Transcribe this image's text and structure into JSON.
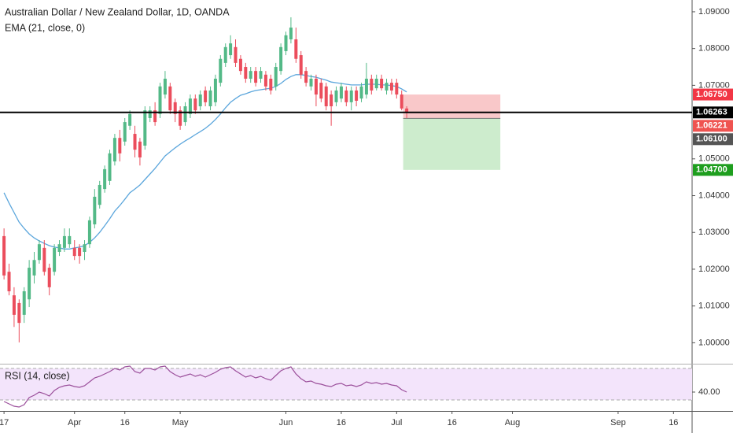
{
  "chart_data": [
    {
      "type": "candlestick",
      "title": "Australian Dollar / New Zealand Dollar, 1D, OANDA",
      "xlim": [
        -0.8,
        136.7
      ],
      "ylim": [
        0.9943,
        1.0932
      ],
      "yticks": [
        {
          "value": 1.09,
          "label": "1.09000"
        },
        {
          "value": 1.08,
          "label": "1.08000"
        },
        {
          "value": 1.07,
          "label": "1.07000"
        },
        {
          "value": 1.05,
          "label": "1.05000"
        },
        {
          "value": 1.04,
          "label": "1.04000"
        },
        {
          "value": 1.03,
          "label": "1.03000"
        },
        {
          "value": 1.02,
          "label": "1.02000"
        },
        {
          "value": 1.01,
          "label": "1.01000"
        },
        {
          "value": 1.0,
          "label": "1.00000"
        }
      ],
      "color_up": "#53b987",
      "color_down": "#eb4d5c",
      "open": [
        1.029,
        1.0193,
        1.0129,
        1.0108,
        1.0076,
        1.0118,
        1.0183,
        1.0225,
        1.0258,
        1.0204,
        1.0193,
        1.0247,
        1.0258,
        1.0268,
        1.0258,
        1.0258,
        1.0247,
        1.0268,
        1.0322,
        1.0375,
        1.0418,
        1.044,
        1.0493,
        1.0557,
        1.0547,
        1.059,
        1.0568,
        1.0547,
        1.0536,
        1.0611,
        1.0632,
        1.0622,
        1.0675,
        1.0697,
        1.0654,
        1.0632,
        1.06,
        1.0622,
        1.0664,
        1.0643,
        1.0686,
        1.0643,
        1.0654,
        1.0707,
        1.0761,
        1.0782,
        1.0804,
        1.0772,
        1.075,
        1.0718,
        1.0739,
        1.0718,
        1.0729,
        1.0718,
        1.0697,
        1.0739,
        1.0793,
        1.0825,
        1.0825,
        1.0782,
        1.0739,
        1.0697,
        1.0718,
        1.0707,
        1.0697,
        1.0675,
        1.0654,
        1.0664,
        1.0686,
        1.0654,
        1.0686,
        1.0664,
        1.0675,
        1.0718,
        1.0692,
        1.0718,
        1.0686,
        1.0707,
        1.0707,
        1.0675,
        1.0637
      ],
      "high": [
        1.0311,
        1.0215,
        1.0151,
        1.0118,
        1.0151,
        1.0225,
        1.0247,
        1.0279,
        1.0279,
        1.0215,
        1.0268,
        1.0279,
        1.0311,
        1.0311,
        1.0279,
        1.0268,
        1.0279,
        1.0343,
        1.0418,
        1.044,
        1.0482,
        1.0525,
        1.0568,
        1.0579,
        1.0611,
        1.0632,
        1.059,
        1.0557,
        1.0643,
        1.0643,
        1.0654,
        1.0707,
        1.0739,
        1.0707,
        1.0664,
        1.0643,
        1.0654,
        1.0675,
        1.0675,
        1.0686,
        1.0697,
        1.0697,
        1.0729,
        1.0782,
        1.0814,
        1.0836,
        1.0825,
        1.0782,
        1.0761,
        1.075,
        1.075,
        1.075,
        1.0739,
        1.0729,
        1.0761,
        1.0814,
        1.0846,
        1.0885,
        1.0857,
        1.0793,
        1.075,
        1.0729,
        1.0729,
        1.0718,
        1.0707,
        1.0686,
        1.0697,
        1.0707,
        1.0697,
        1.0697,
        1.0697,
        1.0707,
        1.0761,
        1.0729,
        1.0729,
        1.0729,
        1.0718,
        1.0718,
        1.0718,
        1.0686,
        1.0643
      ],
      "low": [
        1.0172,
        1.0129,
        1.0043,
        1.0001,
        1.0054,
        1.0097,
        1.0161,
        1.0215,
        1.0183,
        1.0129,
        1.0183,
        1.0236,
        1.0247,
        1.0258,
        1.0225,
        1.0215,
        1.0225,
        1.0258,
        1.0311,
        1.0365,
        1.0408,
        1.0429,
        1.0482,
        1.0493,
        1.0536,
        1.0579,
        1.0504,
        1.0482,
        1.0525,
        1.06,
        1.059,
        1.0611,
        1.0664,
        1.0622,
        1.06,
        1.0579,
        1.059,
        1.0611,
        1.0622,
        1.0632,
        1.0643,
        1.0632,
        1.0643,
        1.0697,
        1.075,
        1.0772,
        1.075,
        1.0729,
        1.0707,
        1.0707,
        1.0697,
        1.0707,
        1.0686,
        1.0675,
        1.0686,
        1.0729,
        1.0782,
        1.0814,
        1.0761,
        1.0718,
        1.0697,
        1.0686,
        1.0643,
        1.0654,
        1.0632,
        1.059,
        1.0643,
        1.0654,
        1.0643,
        1.0632,
        1.0643,
        1.0654,
        1.0664,
        1.0675,
        1.0686,
        1.0686,
        1.0675,
        1.0675,
        1.0664,
        1.0632,
        1.0611
      ],
      "close": [
        1.0183,
        1.014,
        1.0076,
        1.0054,
        1.014,
        1.0204,
        1.0225,
        1.0268,
        1.0193,
        1.0151,
        1.0258,
        1.0268,
        1.029,
        1.029,
        1.0236,
        1.0236,
        1.0268,
        1.0333,
        1.0397,
        1.0429,
        1.0472,
        1.0515,
        1.0557,
        1.0515,
        1.06,
        1.0622,
        1.0525,
        1.0504,
        1.0632,
        1.0632,
        1.06,
        1.0697,
        1.0718,
        1.0632,
        1.0622,
        1.059,
        1.0643,
        1.0664,
        1.0632,
        1.0675,
        1.0654,
        1.0686,
        1.0718,
        1.0772,
        1.0804,
        1.0814,
        1.0761,
        1.0739,
        1.0718,
        1.0739,
        1.0707,
        1.0739,
        1.0697,
        1.0686,
        1.075,
        1.0804,
        1.0836,
        1.0857,
        1.0772,
        1.0729,
        1.0707,
        1.0718,
        1.0675,
        1.0664,
        1.0643,
        1.0643,
        1.0686,
        1.0697,
        1.0654,
        1.0686,
        1.0658,
        1.0697,
        1.0718,
        1.0686,
        1.0718,
        1.0692,
        1.0707,
        1.0686,
        1.0675,
        1.0637,
        1.0626
      ],
      "series": [
        {
          "name": "EMA (21, close, 0)",
          "color": "#5ba6dc",
          "values": [
            1.0408,
            1.038,
            1.0354,
            1.0328,
            1.0311,
            1.0296,
            1.0285,
            1.0277,
            1.027,
            1.0264,
            1.026,
            1.0258,
            1.0255,
            1.0255,
            1.0258,
            1.026,
            1.0264,
            1.0273,
            1.0285,
            1.03,
            1.0318,
            1.0337,
            1.0358,
            1.0373,
            1.039,
            1.0408,
            1.0418,
            1.0429,
            1.0444,
            1.0459,
            1.0474,
            1.0491,
            1.0508,
            1.0519,
            1.053,
            1.054,
            1.0549,
            1.0557,
            1.0566,
            1.0574,
            1.0583,
            1.0594,
            1.0607,
            1.0622,
            1.0639,
            1.0654,
            1.0664,
            1.0673,
            1.0677,
            1.0682,
            1.0686,
            1.0688,
            1.069,
            1.0692,
            1.0697,
            1.0705,
            1.0716,
            1.0724,
            1.0729,
            1.0729,
            1.0727,
            1.0724,
            1.0722,
            1.0718,
            1.0714,
            1.0709,
            1.0707,
            1.0705,
            1.0703,
            1.0701,
            1.0701,
            1.0701,
            1.0703,
            1.0703,
            1.0703,
            1.0701,
            1.0701,
            1.0699,
            1.0697,
            1.069,
            1.0682
          ]
        }
      ],
      "price_labels": [
        {
          "value": 1.0675,
          "label": "1.06750",
          "color": "#f23645"
        },
        {
          "value": 1.06263,
          "label": "1.06263",
          "color": "#000000",
          "line": true
        },
        {
          "value": 1.06221,
          "label": "1.06221",
          "color": "#ef5350"
        },
        {
          "value": 1.061,
          "label": "1.06100",
          "color": "#555555"
        },
        {
          "value": 1.047,
          "label": "1.04700",
          "color": "#1e9e1e"
        }
      ],
      "position": {
        "x": [
          79.3,
          98.6
        ],
        "stop": 0,
        "entry": 3,
        "target": 4,
        "loss_color": "#f9c8c9",
        "profit_color": "#cdeccd"
      }
    },
    {
      "type": "line",
      "xlim": [
        -0.8,
        136.7
      ],
      "ylim": [
        16,
        75
      ],
      "yticks": [
        {
          "value": 40,
          "label": "40.00"
        }
      ],
      "band": [
        30,
        70
      ],
      "xticks": [
        {
          "value": 0,
          "label": "17"
        },
        {
          "value": 14,
          "label": "Apr"
        },
        {
          "value": 24,
          "label": "16"
        },
        {
          "value": 35,
          "label": "May"
        },
        {
          "value": 56,
          "label": "Jun"
        },
        {
          "value": 67,
          "label": "16"
        },
        {
          "value": 78,
          "label": "Jul"
        },
        {
          "value": 89,
          "label": "16"
        },
        {
          "value": 101,
          "label": "Aug"
        },
        {
          "value": 122,
          "label": "Sep"
        },
        {
          "value": 133,
          "label": "16"
        }
      ],
      "series": [
        {
          "name": "RSI (14, close)",
          "color": "#9b4f9b",
          "values": [
            28,
            25,
            22,
            21,
            24,
            33,
            36,
            40,
            38,
            35,
            42,
            46,
            48,
            49,
            47,
            46,
            48,
            53,
            58,
            60,
            63,
            66,
            70,
            68,
            72,
            73,
            66,
            64,
            70,
            70,
            68,
            72,
            73,
            66,
            62,
            59,
            61,
            63,
            60,
            62,
            59,
            62,
            65,
            69,
            71,
            72,
            67,
            63,
            59,
            61,
            58,
            60,
            57,
            55,
            61,
            67,
            70,
            72,
            63,
            57,
            53,
            54,
            51,
            50,
            48,
            47,
            50,
            51,
            48,
            49,
            47,
            49,
            53,
            51,
            52,
            50,
            51,
            49,
            48,
            43,
            40
          ]
        }
      ]
    }
  ]
}
